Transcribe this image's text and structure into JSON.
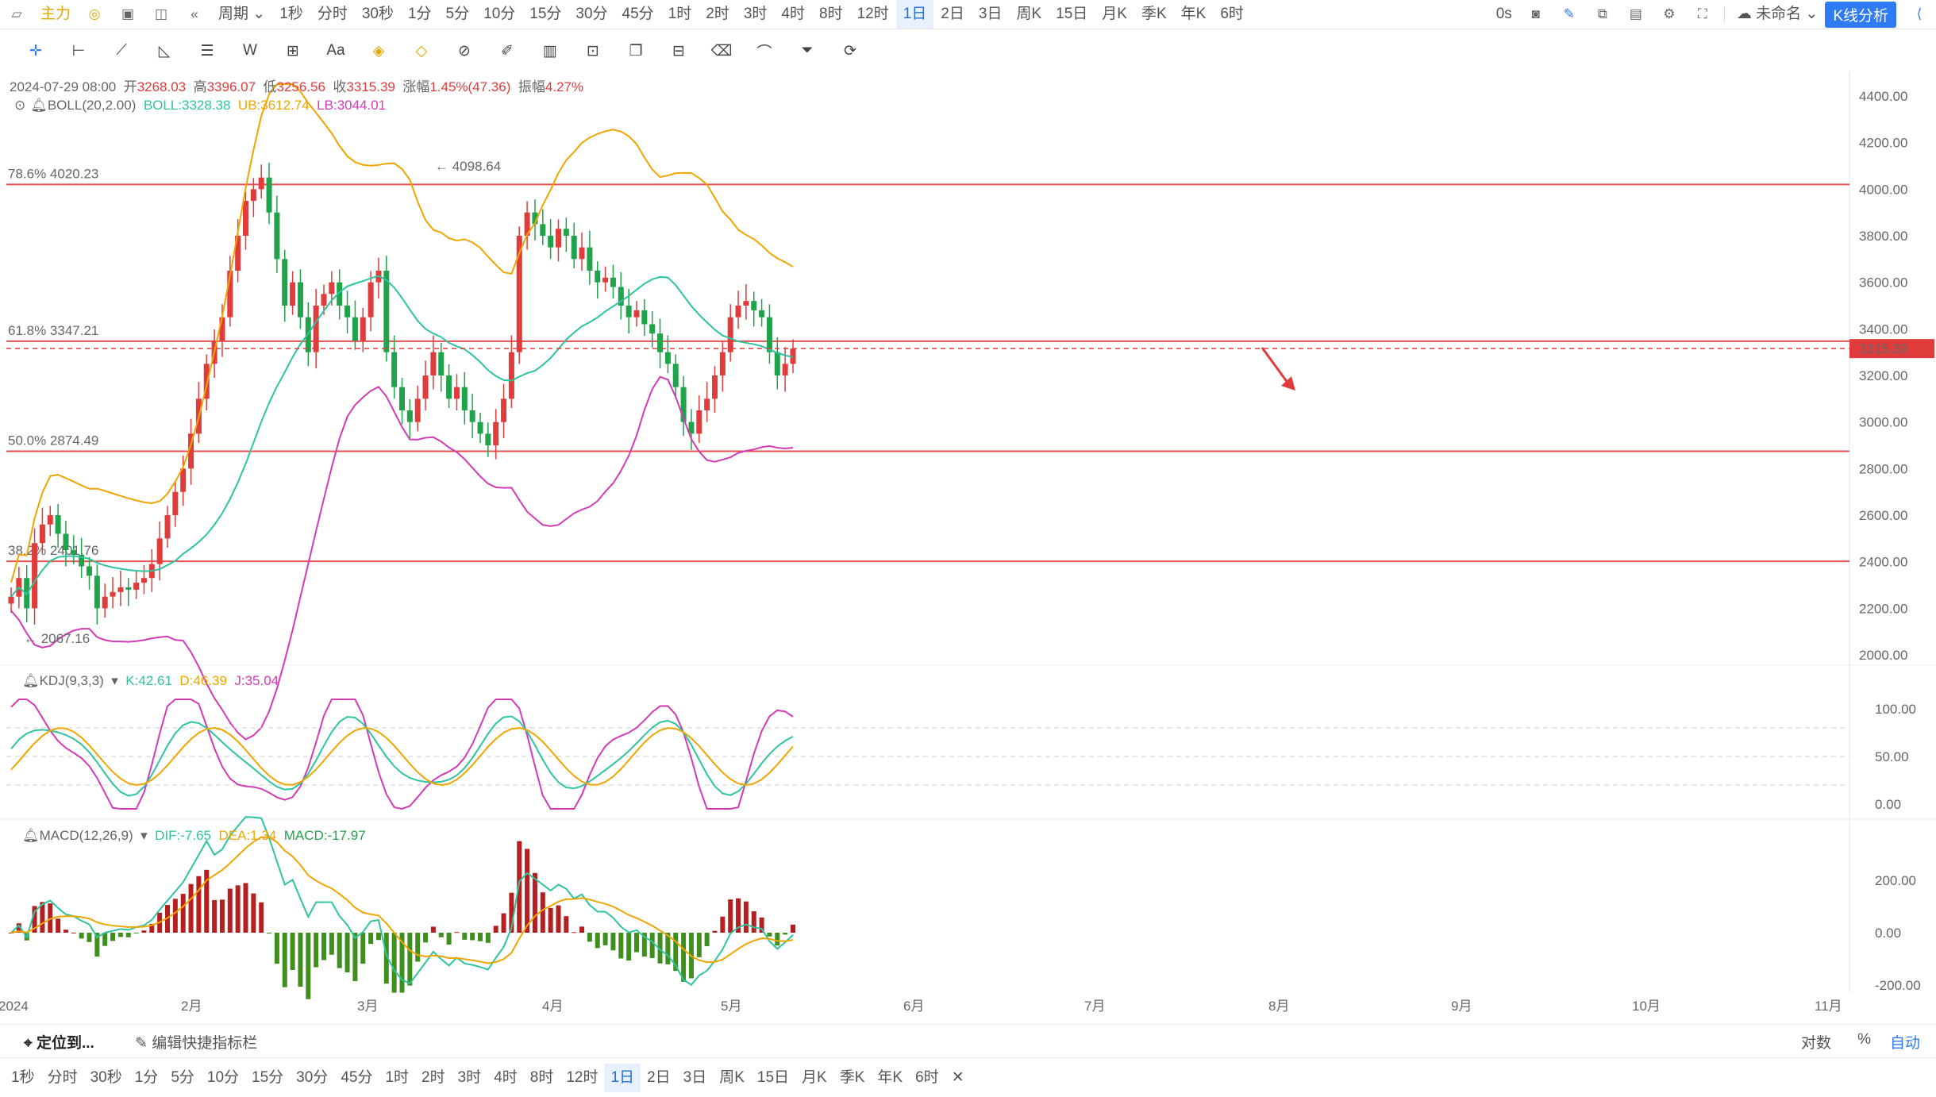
{
  "topbar": {
    "brand_label": "主力",
    "period_label": "周期",
    "periods": [
      "1秒",
      "分时",
      "30秒",
      "1分",
      "5分",
      "10分",
      "15分",
      "30分",
      "45分",
      "1时",
      "2时",
      "3时",
      "4时",
      "8时",
      "12时",
      "1日",
      "2日",
      "3日",
      "周K",
      "15日",
      "月K",
      "季K",
      "年K",
      "6时"
    ],
    "active_period": "1日",
    "countdown": "0s",
    "layout_name": "未命名",
    "kline_button": "K线分析"
  },
  "info": {
    "datetime": "2024-07-29 08:00",
    "open_label": "开",
    "open": "3268.03",
    "high_label": "高",
    "high": "3396.07",
    "low_label": "低",
    "low": "3256.56",
    "close_label": "收",
    "close": "3315.39",
    "change_label": "涨幅",
    "change": "1.45%(47.36)",
    "amp_label": "振幅",
    "amp": "4.27%"
  },
  "indicators": {
    "boll": {
      "name": "BOLL(20,2.00)",
      "mid": "BOLL:3328.38",
      "ub": "UB:3612.74",
      "lb": "LB:3044.01"
    },
    "kdj": {
      "name": "KDJ(9,3,3)",
      "k": "K:42.61",
      "d": "D:46.39",
      "j": "J:35.04"
    },
    "macd": {
      "name": "MACD(12,26,9)",
      "dif": "DIF:-7.65",
      "dea": "DEA:1.34",
      "macd": "MACD:-17.97"
    }
  },
  "fib": [
    {
      "label": "78.6% 4020.23",
      "price": 4020.23
    },
    {
      "label": "61.8% 3347.21",
      "price": 3347.21
    },
    {
      "label": "50.0% 2874.49",
      "price": 2874.49
    },
    {
      "label": "38.2% 2401.76",
      "price": 2401.76
    }
  ],
  "price_axis": [
    "4400.00",
    "4200.00",
    "4000.00",
    "3800.00",
    "3600.00",
    "3400.00",
    "3200.00",
    "3000.00",
    "2800.00",
    "2600.00",
    "2400.00",
    "2200.00",
    "2000.00"
  ],
  "price_values": [
    4400,
    4200,
    4000,
    3800,
    3600,
    3400,
    3200,
    3000,
    2800,
    2600,
    2400,
    2200,
    2000
  ],
  "last_price": "3315.39",
  "high_marker": "← 4098.64",
  "low_marker": "← 2067.16",
  "kdj_axis": [
    "100.00",
    "50.00",
    "0.00"
  ],
  "macd_axis": [
    "200.00",
    "0.00",
    "-200.00"
  ],
  "time_axis": [
    "2024",
    "2月",
    "3月",
    "4月",
    "5月",
    "6月",
    "7月",
    "8月",
    "9月",
    "10月",
    "11月"
  ],
  "bottom": {
    "locate": "定位到...",
    "edit_shortcuts": "编辑快捷指标栏",
    "log": "对数",
    "percent": "%",
    "auto": "自动",
    "periods": [
      "1秒",
      "分时",
      "30秒",
      "1分",
      "5分",
      "10分",
      "15分",
      "30分",
      "45分",
      "1时",
      "2时",
      "3时",
      "4时",
      "8时",
      "12时",
      "1日",
      "2日",
      "3日",
      "周K",
      "15日",
      "月K",
      "季K",
      "年K",
      "6时"
    ],
    "active_period": "1日"
  },
  "colors": {
    "up": "#e03c3c",
    "down": "#21a34b",
    "boll_mid": "#2ec4a0",
    "boll_ub": "#f0a500",
    "boll_lb": "#d33bb5",
    "k": "#2ec4a0",
    "d": "#f0a500",
    "j": "#d33bb5",
    "accent": "#2f7bf5"
  },
  "chart_data": {
    "type": "candlestick",
    "title": "",
    "x_range": [
      "2024-01-01",
      "2024-11-30"
    ],
    "y_range": [
      2000,
      4400
    ],
    "closes": [
      2250,
      2330,
      2200,
      2480,
      2560,
      2600,
      2520,
      2450,
      2430,
      2380,
      2340,
      2200,
      2250,
      2270,
      2290,
      2280,
      2310,
      2330,
      2390,
      2500,
      2600,
      2700,
      2800,
      2950,
      3100,
      3250,
      3350,
      3450,
      3650,
      3800,
      3950,
      4000,
      4050,
      3900,
      3700,
      3500,
      3600,
      3450,
      3300,
      3500,
      3550,
      3600,
      3500,
      3450,
      3350,
      3450,
      3600,
      3650,
      3300,
      3150,
      3050,
      3000,
      3100,
      3200,
      3300,
      3200,
      3100,
      3150,
      3050,
      3000,
      2950,
      2900,
      3000,
      3100,
      3300,
      3800,
      3900,
      3850,
      3800,
      3750,
      3830,
      3800,
      3700,
      3750,
      3650,
      3600,
      3620,
      3580,
      3500,
      3450,
      3480,
      3420,
      3380,
      3300,
      3250,
      3150,
      3000,
      2950,
      3050,
      3100,
      3200,
      3300,
      3450,
      3500,
      3520,
      3480,
      3450,
      3300,
      3200,
      3250,
      3315.39
    ]
  }
}
